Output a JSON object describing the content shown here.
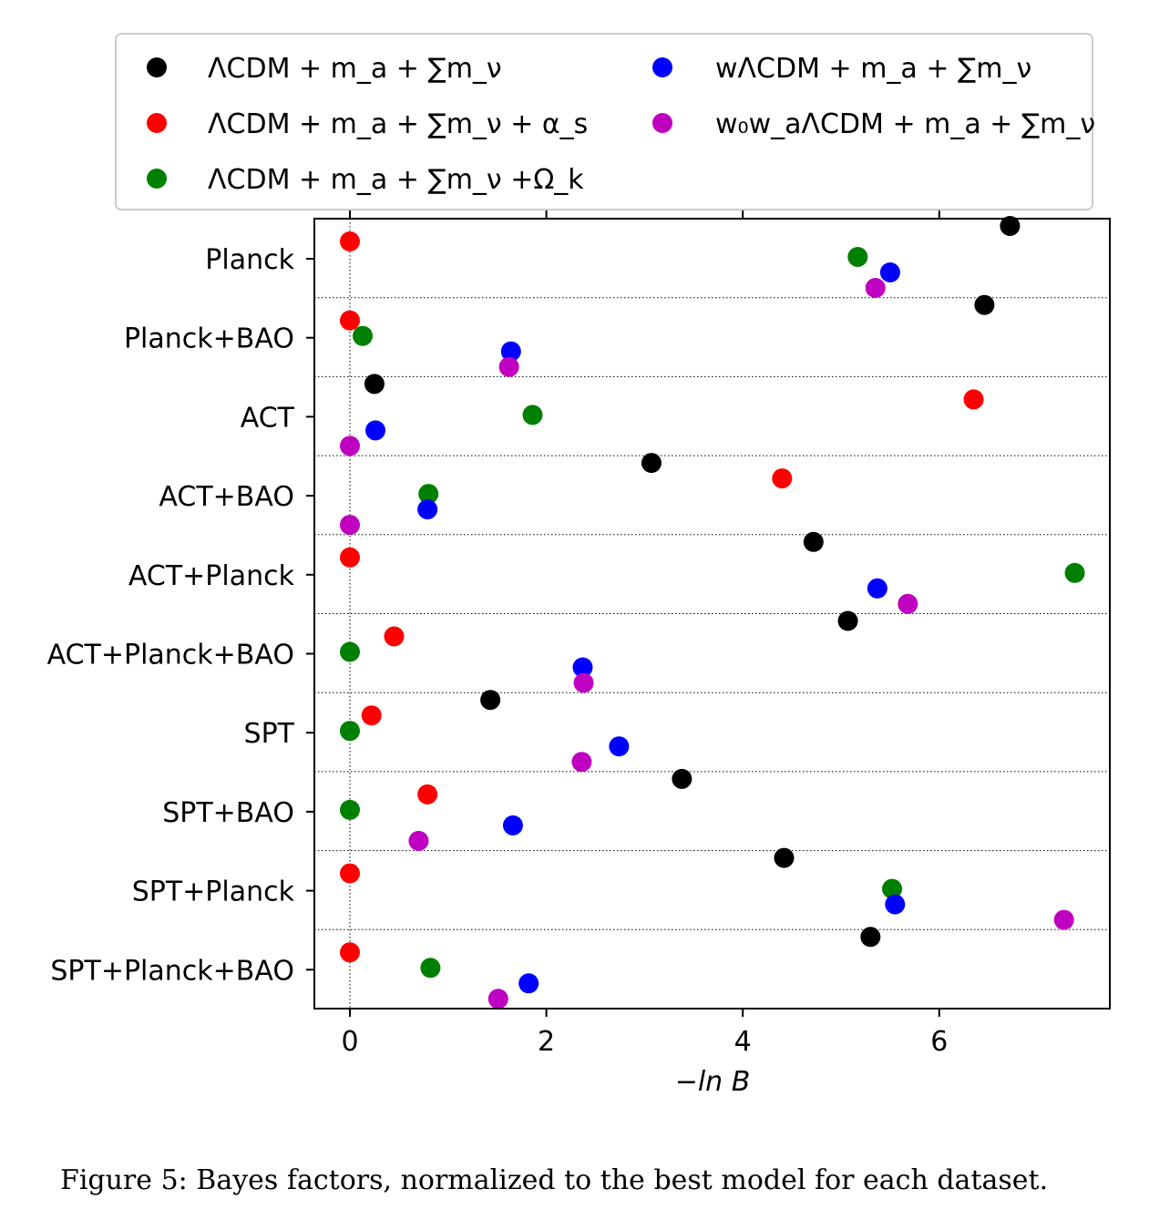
{
  "chart_data": {
    "type": "scatter",
    "xlabel": "−ln B",
    "xlim": [
      -0.35,
      7.75
    ],
    "xticks": [
      0,
      2,
      4,
      6
    ],
    "categories": [
      "Planck",
      "Planck+BAO",
      "ACT",
      "ACT+BAO",
      "ACT+Planck",
      "ACT+Planck+BAO",
      "SPT",
      "SPT+BAO",
      "SPT+Planck",
      "SPT+Planck+BAO"
    ],
    "legend_position": "top (above plot, 2 columns)",
    "grid": "horizontal dotted separators between datasets; vertical dotted line at x=0",
    "series": [
      {
        "name": "ΛCDM + m_a + ∑m_ν",
        "color": "#000000",
        "values": [
          6.72,
          6.46,
          0.25,
          3.07,
          4.72,
          5.07,
          1.43,
          3.38,
          4.42,
          5.3
        ]
      },
      {
        "name": "ΛCDM + m_a + ∑m_ν + α_s",
        "color": "#ff0000",
        "values": [
          0.0,
          0.0,
          6.35,
          4.4,
          0.0,
          0.45,
          0.22,
          0.79,
          0.0,
          0.0
        ]
      },
      {
        "name": "ΛCDM + m_a + ∑m_ν +Ω_k",
        "color": "#008000",
        "values": [
          5.17,
          0.13,
          1.86,
          0.8,
          7.38,
          0.0,
          0.0,
          0.0,
          5.52,
          0.82
        ]
      },
      {
        "name": "wΛCDM + m_a + ∑m_ν",
        "color": "#0000ff",
        "values": [
          5.5,
          1.64,
          0.26,
          0.79,
          5.37,
          2.37,
          2.74,
          1.66,
          5.55,
          1.82
        ]
      },
      {
        "name": "w₀w_aΛCDM + m_a + ∑m_ν",
        "color": "#c000c0",
        "values": [
          5.35,
          1.62,
          0.0,
          0.0,
          5.68,
          2.38,
          2.36,
          0.7,
          7.27,
          1.51
        ]
      }
    ]
  },
  "legend": {
    "rows": [
      [
        {
          "prefix": "ΛCDM + ",
          "italic": "m",
          "sub": "a",
          "tail": " + ∑",
          "italic2": "m",
          "sub2": "ν",
          "extra": ""
        },
        {
          "prefix": "",
          "italic": "w",
          "sub": "",
          "tail": "ΛCDM + ",
          "italic2": "m",
          "sub2": "a",
          "extra": " + ∑m_ν"
        }
      ]
    ],
    "labels": [
      "ΛCDM + m_a + ∑m_ν",
      "ΛCDM + m_a + ∑m_ν + α_s",
      "ΛCDM + m_a + ∑m_ν +Ω_k",
      "wΛCDM + m_a + ∑m_ν",
      "w₀w_aΛCDM + m_a + ∑m_ν"
    ]
  },
  "caption": "Figure 5: Bayes factors, normalized to the best model for each dataset."
}
